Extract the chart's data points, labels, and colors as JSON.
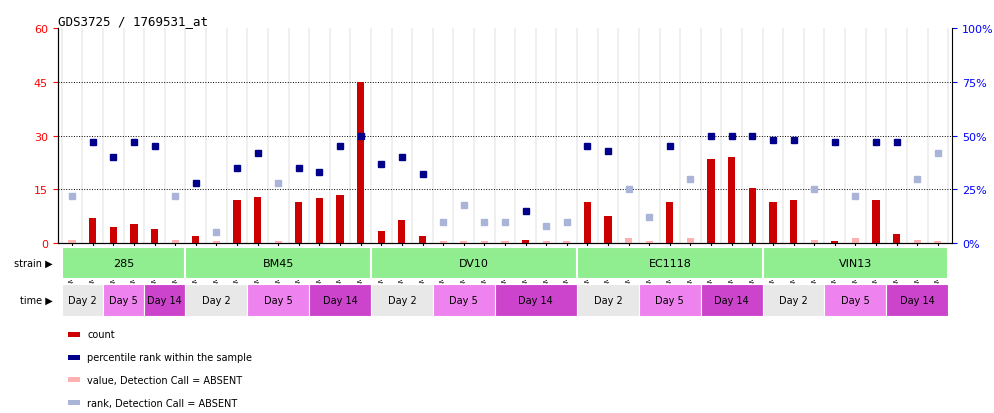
{
  "title": "GDS3725 / 1769531_at",
  "samples": [
    "GSM291115",
    "GSM291116",
    "GSM291117",
    "GSM291140",
    "GSM291141",
    "GSM291142",
    "GSM291000",
    "GSM291001",
    "GSM291462",
    "GSM291523",
    "GSM291524",
    "GSM291555",
    "GSM296856",
    "GSM296857",
    "GSM290992",
    "GSM290993",
    "GSM290989",
    "GSM290990",
    "GSM290991",
    "GSM291538",
    "GSM291539",
    "GSM291540",
    "GSM290994",
    "GSM290995",
    "GSM290996",
    "GSM291435",
    "GSM291439",
    "GSM291445",
    "GSM291554",
    "GSM296858",
    "GSM296859",
    "GSM290997",
    "GSM290998",
    "GSM290999",
    "GSM290901",
    "GSM290902",
    "GSM290903",
    "GSM291525",
    "GSM296860",
    "GSM296861",
    "GSM291002",
    "GSM291003",
    "GSM292045"
  ],
  "count_values": [
    1.0,
    7.0,
    4.5,
    5.5,
    4.0,
    1.0,
    2.0,
    0.5,
    12.0,
    13.0,
    0.5,
    11.5,
    12.5,
    13.5,
    45.0,
    3.5,
    6.5,
    2.0,
    0.5,
    0.5,
    0.5,
    0.5,
    1.0,
    0.5,
    0.5,
    11.5,
    7.5,
    1.5,
    0.5,
    11.5,
    1.5,
    23.5,
    24.0,
    15.5,
    11.5,
    12.0,
    1.0,
    0.5,
    1.5,
    12.0,
    2.5,
    1.0,
    0.5
  ],
  "count_absent": [
    true,
    false,
    false,
    false,
    false,
    true,
    false,
    true,
    false,
    false,
    true,
    false,
    false,
    false,
    false,
    false,
    false,
    false,
    true,
    true,
    true,
    true,
    false,
    true,
    true,
    false,
    false,
    true,
    true,
    false,
    true,
    false,
    false,
    false,
    false,
    false,
    true,
    false,
    true,
    false,
    false,
    true,
    true
  ],
  "rank_values": [
    22.0,
    47.0,
    40.0,
    47.0,
    45.0,
    22.0,
    28.0,
    5.0,
    35.0,
    42.0,
    28.0,
    35.0,
    33.0,
    45.0,
    50.0,
    37.0,
    40.0,
    32.0,
    10.0,
    18.0,
    10.0,
    10.0,
    15.0,
    8.0,
    10.0,
    45.0,
    43.0,
    25.0,
    12.0,
    45.0,
    30.0,
    50.0,
    50.0,
    50.0,
    48.0,
    48.0,
    25.0,
    47.0,
    22.0,
    47.0,
    47.0,
    30.0,
    42.0
  ],
  "rank_absent": [
    true,
    false,
    false,
    false,
    false,
    true,
    false,
    true,
    false,
    false,
    true,
    false,
    false,
    false,
    false,
    false,
    false,
    false,
    true,
    true,
    true,
    true,
    false,
    true,
    true,
    false,
    false,
    true,
    true,
    false,
    true,
    false,
    false,
    false,
    false,
    false,
    true,
    false,
    true,
    false,
    false,
    true,
    true
  ],
  "strains": [
    {
      "name": "285",
      "start": 0,
      "end": 6
    },
    {
      "name": "BM45",
      "start": 6,
      "end": 15
    },
    {
      "name": "DV10",
      "start": 15,
      "end": 25
    },
    {
      "name": "EC1118",
      "start": 25,
      "end": 34
    },
    {
      "name": "VIN13",
      "start": 34,
      "end": 43
    }
  ],
  "time_groups": [
    {
      "label": "Day 2",
      "start": 0,
      "end": 2,
      "shade": 0
    },
    {
      "label": "Day 5",
      "start": 2,
      "end": 4,
      "shade": 1
    },
    {
      "label": "Day 14",
      "start": 4,
      "end": 6,
      "shade": 2
    },
    {
      "label": "Day 2",
      "start": 6,
      "end": 9,
      "shade": 0
    },
    {
      "label": "Day 5",
      "start": 9,
      "end": 12,
      "shade": 1
    },
    {
      "label": "Day 14",
      "start": 12,
      "end": 15,
      "shade": 2
    },
    {
      "label": "Day 2",
      "start": 15,
      "end": 18,
      "shade": 0
    },
    {
      "label": "Day 5",
      "start": 18,
      "end": 21,
      "shade": 1
    },
    {
      "label": "Day 14",
      "start": 21,
      "end": 25,
      "shade": 2
    },
    {
      "label": "Day 2",
      "start": 25,
      "end": 28,
      "shade": 0
    },
    {
      "label": "Day 5",
      "start": 28,
      "end": 31,
      "shade": 1
    },
    {
      "label": "Day 14",
      "start": 31,
      "end": 34,
      "shade": 2
    },
    {
      "label": "Day 2",
      "start": 34,
      "end": 37,
      "shade": 0
    },
    {
      "label": "Day 5",
      "start": 37,
      "end": 40,
      "shade": 1
    },
    {
      "label": "Day 14",
      "start": 40,
      "end": 43,
      "shade": 2
    }
  ],
  "ylim_left": [
    0,
    60
  ],
  "ylim_right": [
    0,
    100
  ],
  "yticks_left": [
    0,
    15,
    30,
    45,
    60
  ],
  "yticks_right": [
    0,
    25,
    50,
    75,
    100
  ],
  "color_count_present": "#cc0000",
  "color_count_absent": "#ffb0b0",
  "color_rank_present": "#00008b",
  "color_rank_absent": "#aab4d8",
  "color_strain_bg": "#90ee90",
  "color_time_day2": "#e8e8e8",
  "color_time_day5": "#ee82ee",
  "color_time_day14": "#cc44cc",
  "bar_width": 0.35
}
